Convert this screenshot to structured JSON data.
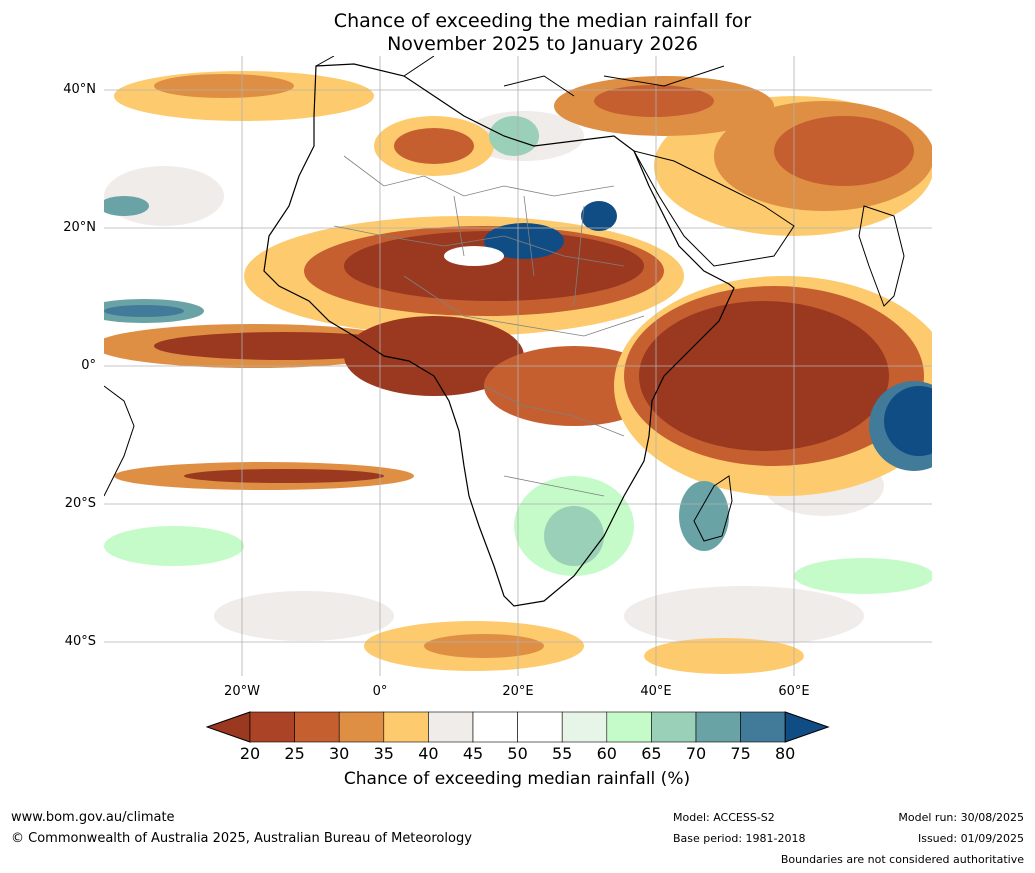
{
  "title": {
    "line1": "Chance of exceeding the median rainfall for",
    "line2": "November 2025 to January 2026"
  },
  "map": {
    "lat_labels": [
      "40°N",
      "20°N",
      "0°",
      "20°S",
      "40°S"
    ],
    "lon_labels": [
      "20°W",
      "0°",
      "20°E",
      "40°E",
      "60°E"
    ]
  },
  "colorbar": {
    "ticks": [
      "20",
      "25",
      "30",
      "35",
      "40",
      "45",
      "50",
      "55",
      "60",
      "65",
      "70",
      "75",
      "80"
    ],
    "colors": [
      "#9a3820",
      "#ab4426",
      "#c65f30",
      "#df8f43",
      "#fdcb6e",
      "#efece9",
      "#ffffff",
      "#ffffff",
      "#e7f5e9",
      "#c5fbc8",
      "#9acfb8",
      "#6aa3a6",
      "#427a9a",
      "#104d85"
    ],
    "title": "Chance of exceeding median rainfall (%)"
  },
  "footer": {
    "website": "www.bom.gov.au/climate",
    "copyright": "© Commonwealth of Australia 2025, Australian Bureau of Meteorology",
    "model": "Model: ACCESS-S2",
    "base_period": "Base period: 1981-2018",
    "model_run": "Model run: 30/08/2025",
    "issued": "Issued: 01/09/2025",
    "disclaimer": "Boundaries are not considered authoritative"
  }
}
